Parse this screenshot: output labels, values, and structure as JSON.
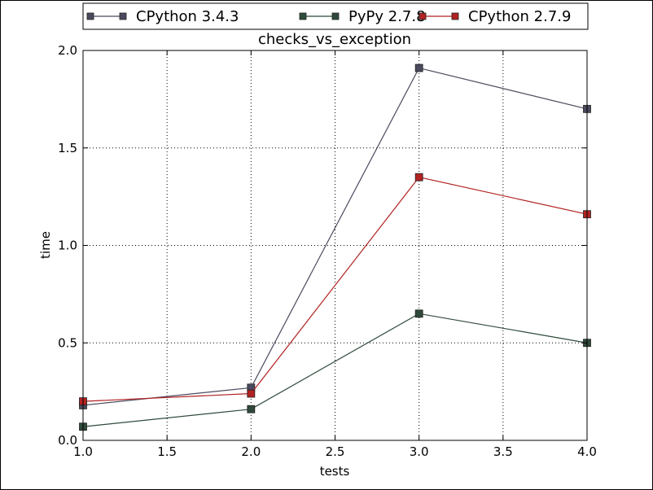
{
  "chart_data": {
    "type": "line",
    "title": "checks_vs_exception",
    "xlabel": "tests",
    "ylabel": "time",
    "xlim": [
      1.0,
      4.0
    ],
    "ylim": [
      0.0,
      2.0
    ],
    "xticks": [
      "1.0",
      "1.5",
      "2.0",
      "2.5",
      "3.0",
      "3.5",
      "4.0"
    ],
    "yticks": [
      "0.0",
      "0.5",
      "1.0",
      "1.5",
      "2.0"
    ],
    "grid": true,
    "legend_position": "top, above plot",
    "x": [
      1,
      2,
      3,
      4
    ],
    "series": [
      {
        "name": "CPython 3.4.3",
        "values": [
          0.18,
          0.27,
          1.91,
          1.7
        ],
        "color": "#4a4a5e"
      },
      {
        "name": "PyPy 2.7.8",
        "values": [
          0.07,
          0.16,
          0.65,
          0.5
        ],
        "color": "#2f4a3a"
      },
      {
        "name": "CPython 2.7.9",
        "values": [
          0.2,
          0.24,
          1.35,
          1.16
        ],
        "color": "#b22222"
      }
    ]
  }
}
